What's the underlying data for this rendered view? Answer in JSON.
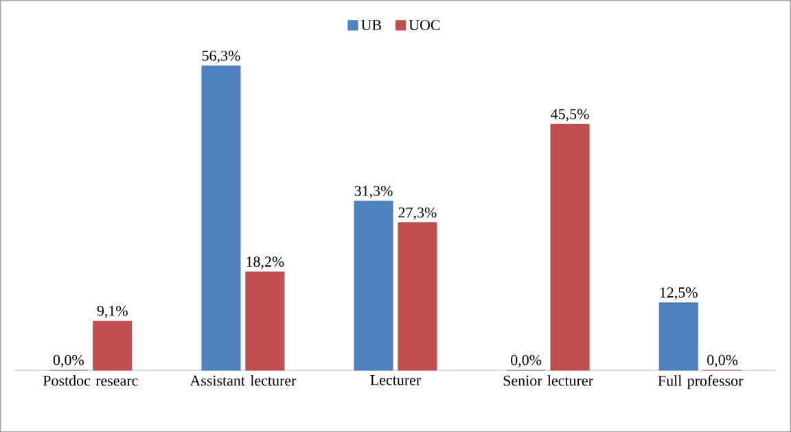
{
  "chart_data": {
    "type": "bar",
    "categories": [
      "Postdoc researc",
      "Assistant lecturer",
      "Lecturer",
      "Senior lecturer",
      "Full professor"
    ],
    "series": [
      {
        "name": "UB",
        "color": "#4f81bd",
        "values": [
          0.0,
          56.3,
          31.3,
          0.0,
          12.5
        ],
        "value_labels": [
          "0,0%",
          "56,3%",
          "31,3%",
          "0,0%",
          "12,5%"
        ]
      },
      {
        "name": "UOC",
        "color": "#c0504d",
        "values": [
          9.1,
          18.2,
          27.3,
          45.5,
          0.0
        ],
        "value_labels": [
          "9,1%",
          "18,2%",
          "27,3%",
          "45,5%",
          "0,0%"
        ]
      }
    ],
    "legend": "top"
  }
}
